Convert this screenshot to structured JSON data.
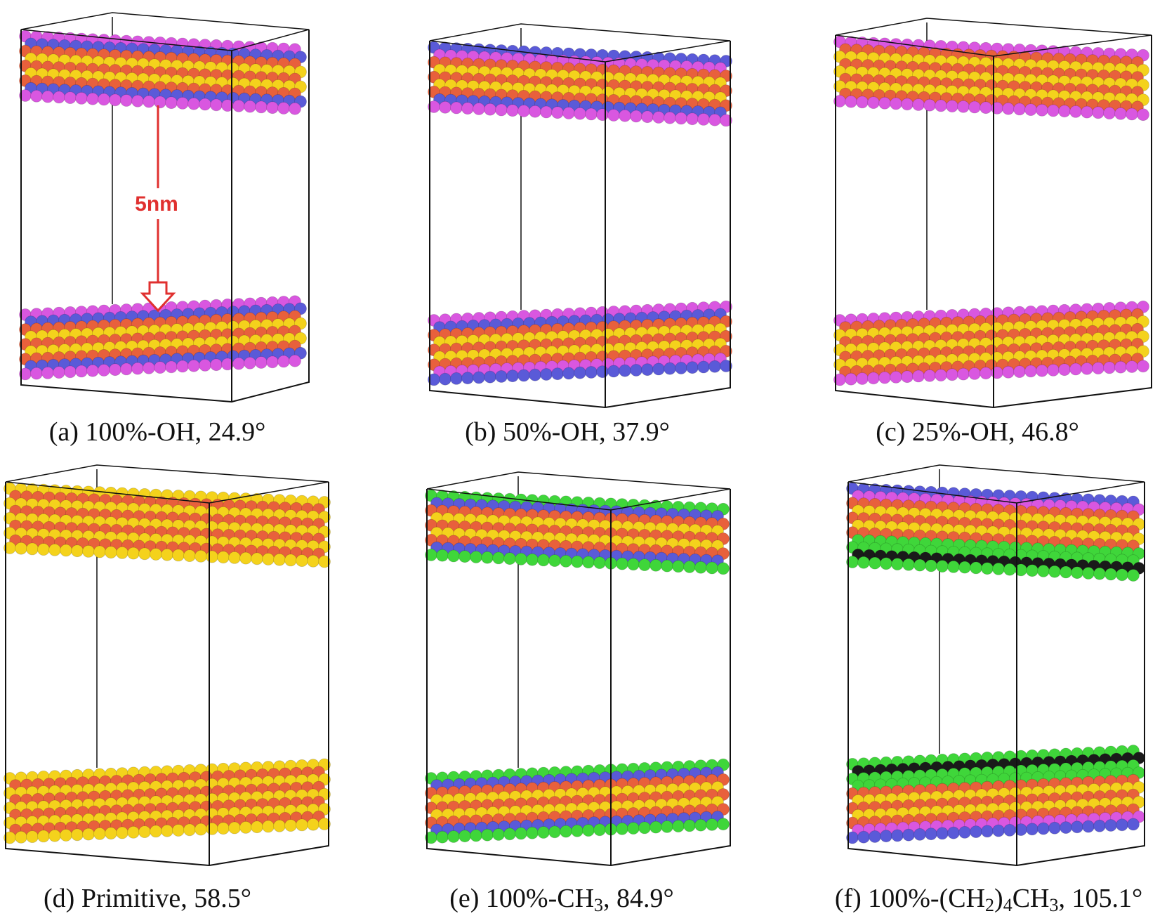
{
  "colors": {
    "hydroxyl_h": "#d957e0",
    "oxygen_blue": "#5a5ad8",
    "oxygen_red": "#e8603c",
    "silicon_yellow": "#f4d21c",
    "methyl_green": "#3fd63a",
    "carbon_black": "#1a1a1a",
    "annotation_red": "#e0302f",
    "box_line": "#111111"
  },
  "annotation": {
    "gap_label": "5nm"
  },
  "panels": [
    {
      "id": "a",
      "caption_prefix": "(a) 100%-OH, 24.9°",
      "surface": "OH-full"
    },
    {
      "id": "b",
      "caption_prefix": "(b) 50%-OH, 37.9°",
      "surface": "OH-half"
    },
    {
      "id": "c",
      "caption_prefix": "(c) 25%-OH, 46.8°",
      "surface": "OH-quarter"
    },
    {
      "id": "d",
      "caption_prefix": "(d) Primitive, 58.5°",
      "surface": "primitive"
    },
    {
      "id": "e",
      "caption_pre": "(e) 100%-CH",
      "caption_sub": "3",
      "caption_post": ", 84.9°",
      "surface": "CH3"
    },
    {
      "id": "f",
      "caption_pre": "(f) 100%-(CH",
      "caption_sub": "2",
      "caption_mid": ")",
      "caption_sub2": "4",
      "caption_mid2": "CH",
      "caption_sub3": "3",
      "caption_post": ", 105.1°",
      "surface": "alkyl"
    }
  ]
}
